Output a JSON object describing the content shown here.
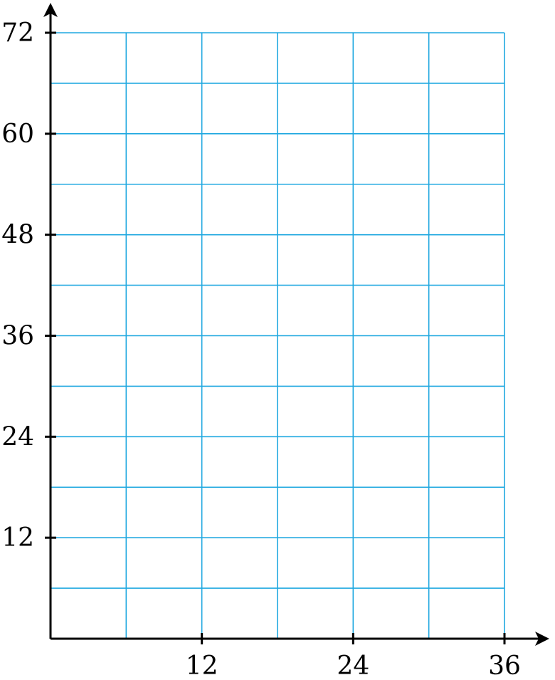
{
  "chart_data": {
    "type": "scatter",
    "title": "",
    "xlabel": "",
    "ylabel": "",
    "xlim": [
      0,
      36
    ],
    "ylim": [
      0,
      72
    ],
    "x_ticks": [
      12,
      24,
      36
    ],
    "y_ticks": [
      12,
      24,
      36,
      48,
      60,
      72
    ],
    "x_tick_labels": [
      "12",
      "24",
      "36"
    ],
    "y_tick_labels": [
      "12",
      "24",
      "36",
      "48",
      "60",
      "72"
    ],
    "x_grid_step": 6,
    "y_grid_step": 6,
    "grid": true,
    "series": []
  },
  "colors": {
    "grid": "#1fa8e0",
    "axis": "#000000",
    "background": "#ffffff"
  }
}
